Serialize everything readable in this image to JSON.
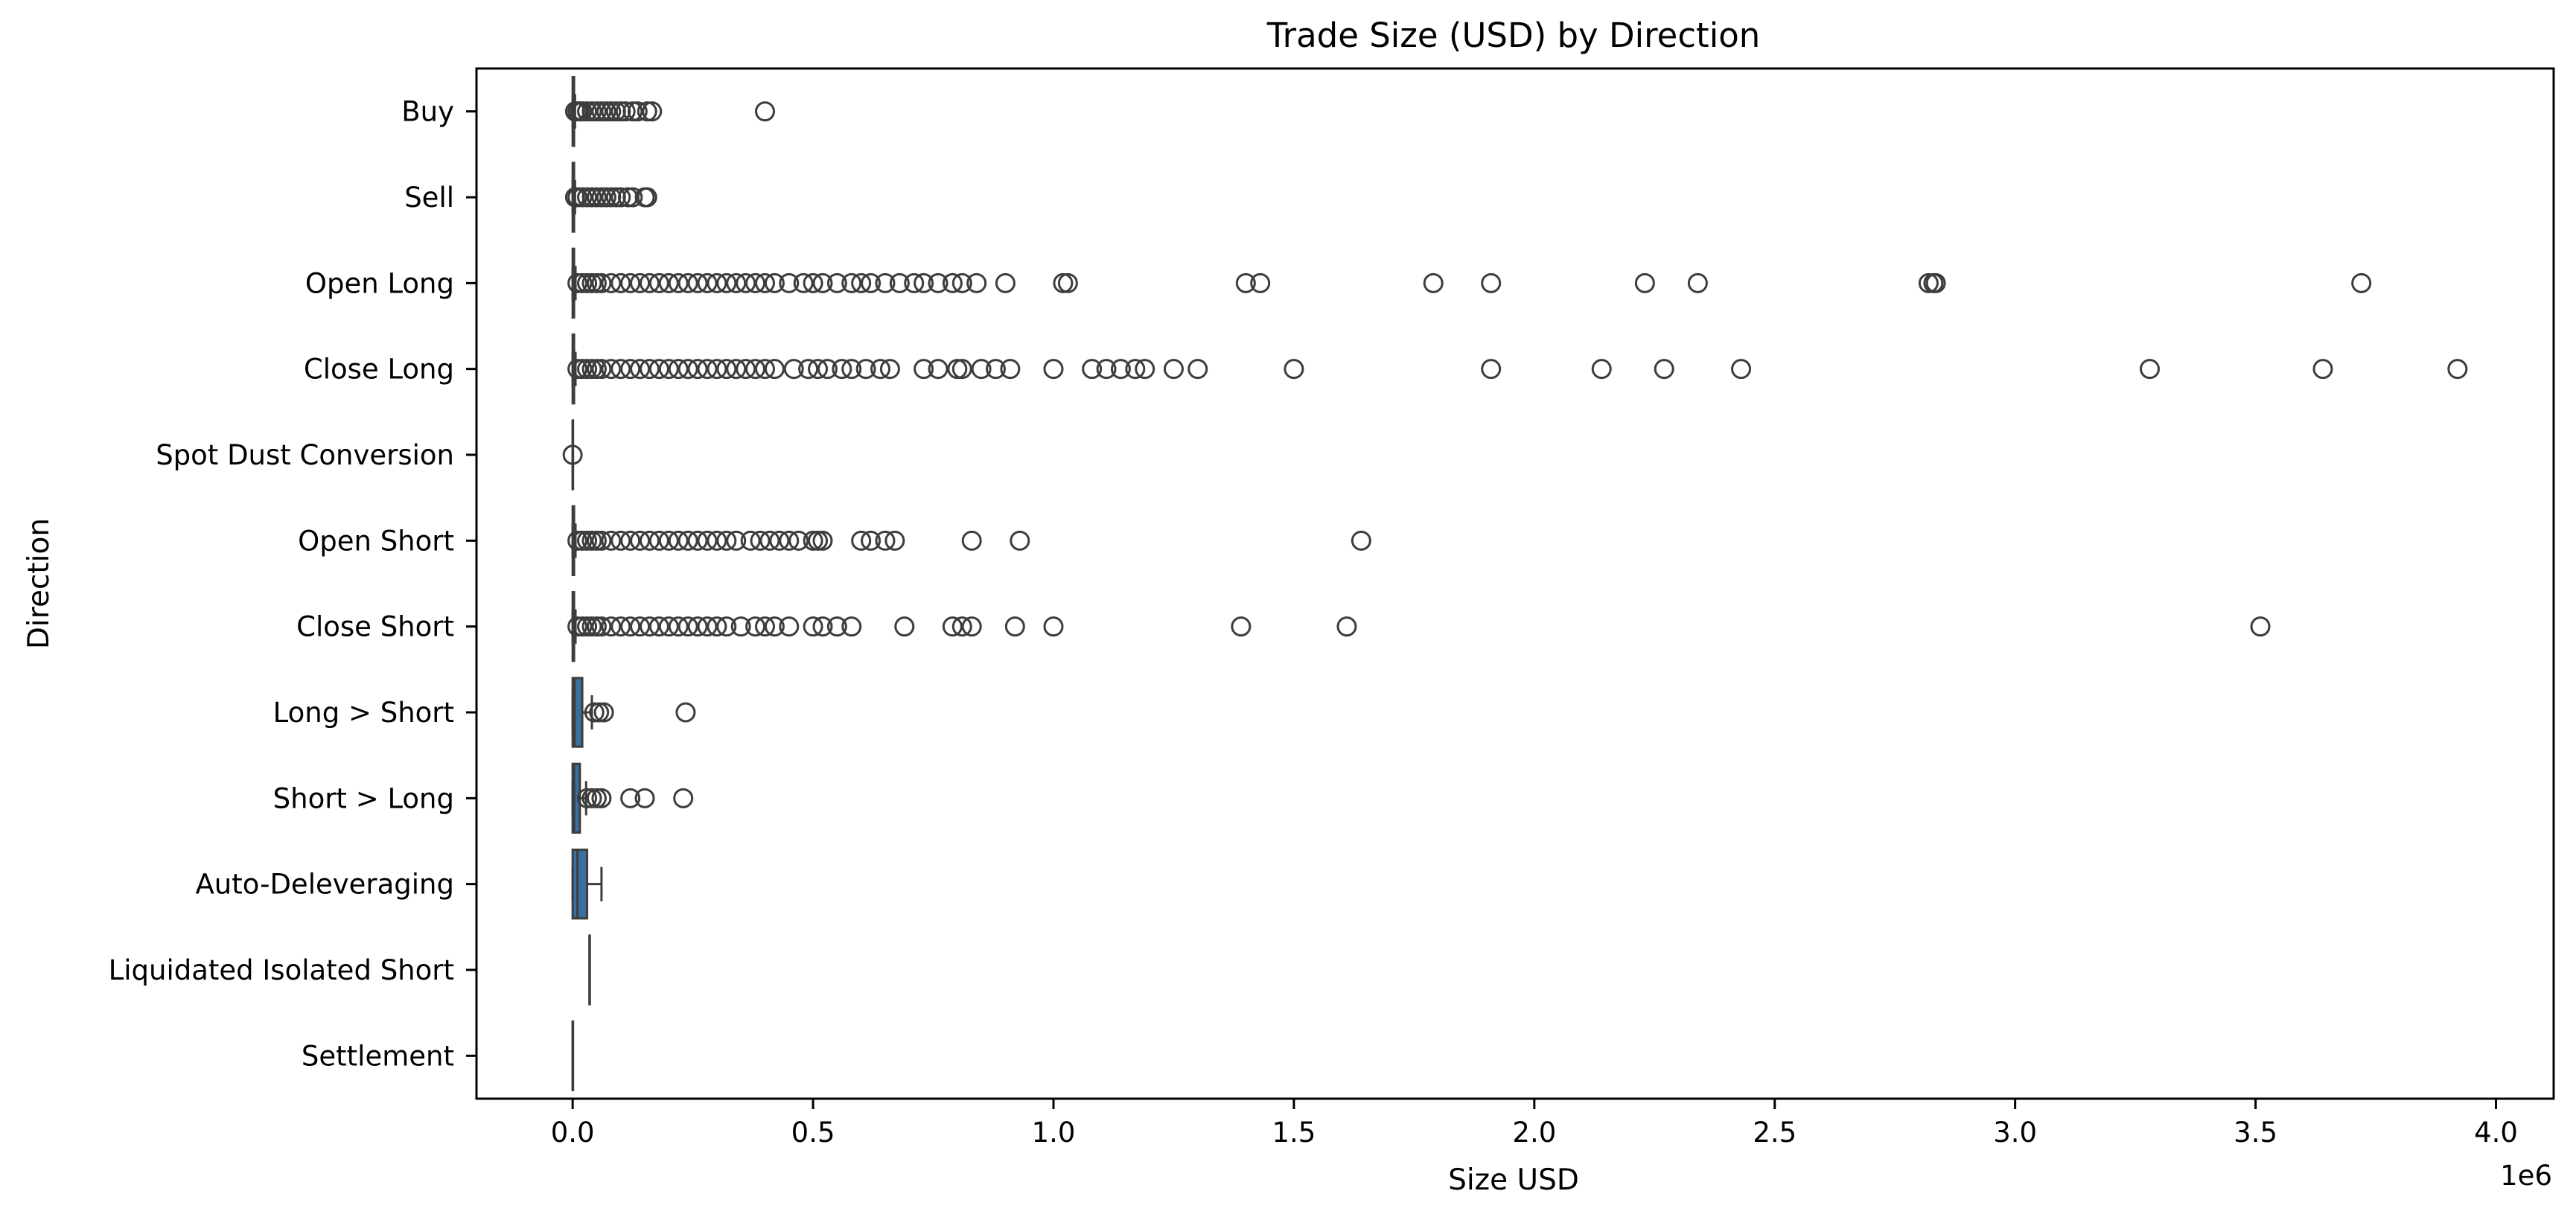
{
  "chart_data": {
    "type": "box",
    "orientation": "horizontal",
    "title": "Trade Size (USD) by Direction",
    "xlabel": "Size USD",
    "ylabel": "Direction",
    "x_scale_multiplier_label": "1e6",
    "xlim": [
      -0.2,
      4.12
    ],
    "x_ticks": [
      0.0,
      0.5,
      1.0,
      1.5,
      2.0,
      2.5,
      3.0,
      3.5,
      4.0
    ],
    "x_tick_labels": [
      "0.0",
      "0.5",
      "1.0",
      "1.5",
      "2.0",
      "2.5",
      "3.0",
      "3.5",
      "4.0"
    ],
    "grid": false,
    "legend": "none",
    "box_color": "#3a6f9f",
    "edge_color": "#3d3d3d",
    "categories": [
      "Buy",
      "Sell",
      "Open Long",
      "Close Long",
      "Spot Dust Conversion",
      "Open Short",
      "Close Short",
      "Long > Short",
      "Short > Long",
      "Auto-Deleveraging",
      "Liquidated Isolated Short",
      "Settlement"
    ],
    "boxes": [
      {
        "category": "Buy",
        "q1": 0.0,
        "median": 0.001,
        "q3": 0.003,
        "whisker_low": 0.0,
        "whisker_high": 0.005,
        "outliers": [
          0.005,
          0.01,
          0.015,
          0.02,
          0.03,
          0.04,
          0.05,
          0.06,
          0.07,
          0.08,
          0.09,
          0.1,
          0.11,
          0.125,
          0.135,
          0.155,
          0.165,
          0.4
        ]
      },
      {
        "category": "Sell",
        "q1": 0.0,
        "median": 0.001,
        "q3": 0.003,
        "whisker_low": 0.0,
        "whisker_high": 0.005,
        "outliers": [
          0.005,
          0.01,
          0.02,
          0.03,
          0.04,
          0.05,
          0.06,
          0.07,
          0.08,
          0.09,
          0.1,
          0.115,
          0.125,
          0.15,
          0.155
        ]
      },
      {
        "category": "Open Long",
        "q1": 0.0,
        "median": 0.001,
        "q3": 0.003,
        "whisker_low": 0.0,
        "whisker_high": 0.006,
        "outliers": [
          0.01,
          0.02,
          0.03,
          0.04,
          0.05,
          0.06,
          0.08,
          0.1,
          0.12,
          0.14,
          0.16,
          0.18,
          0.2,
          0.22,
          0.24,
          0.26,
          0.28,
          0.3,
          0.32,
          0.34,
          0.36,
          0.38,
          0.4,
          0.42,
          0.45,
          0.48,
          0.5,
          0.52,
          0.55,
          0.58,
          0.6,
          0.62,
          0.65,
          0.68,
          0.71,
          0.73,
          0.76,
          0.79,
          0.81,
          0.84,
          0.9,
          1.02,
          1.03,
          1.4,
          1.43,
          1.79,
          1.91,
          2.23,
          2.34,
          2.82,
          2.83,
          2.835,
          3.72
        ]
      },
      {
        "category": "Close Long",
        "q1": 0.0,
        "median": 0.001,
        "q3": 0.003,
        "whisker_low": 0.0,
        "whisker_high": 0.006,
        "outliers": [
          0.01,
          0.02,
          0.03,
          0.04,
          0.05,
          0.06,
          0.08,
          0.1,
          0.12,
          0.14,
          0.16,
          0.18,
          0.2,
          0.22,
          0.24,
          0.26,
          0.28,
          0.3,
          0.32,
          0.34,
          0.36,
          0.38,
          0.4,
          0.42,
          0.46,
          0.49,
          0.51,
          0.53,
          0.56,
          0.58,
          0.61,
          0.64,
          0.66,
          0.73,
          0.76,
          0.8,
          0.81,
          0.85,
          0.88,
          0.91,
          1.0,
          1.08,
          1.11,
          1.14,
          1.17,
          1.19,
          1.25,
          1.3,
          1.5,
          1.91,
          2.14,
          2.27,
          2.43,
          3.28,
          3.64,
          3.92
        ]
      },
      {
        "category": "Spot Dust Conversion",
        "q1": 0.0,
        "median": 0.0,
        "q3": 0.0,
        "whisker_low": 0.0,
        "whisker_high": 0.0,
        "outliers": [
          0.0
        ]
      },
      {
        "category": "Open Short",
        "q1": 0.0,
        "median": 0.001,
        "q3": 0.003,
        "whisker_low": 0.0,
        "whisker_high": 0.006,
        "outliers": [
          0.01,
          0.02,
          0.03,
          0.04,
          0.05,
          0.06,
          0.08,
          0.1,
          0.12,
          0.14,
          0.16,
          0.18,
          0.2,
          0.22,
          0.24,
          0.26,
          0.28,
          0.3,
          0.32,
          0.34,
          0.37,
          0.39,
          0.41,
          0.43,
          0.45,
          0.47,
          0.5,
          0.51,
          0.52,
          0.6,
          0.62,
          0.65,
          0.67,
          0.83,
          0.93,
          1.64
        ]
      },
      {
        "category": "Close Short",
        "q1": 0.0,
        "median": 0.001,
        "q3": 0.003,
        "whisker_low": 0.0,
        "whisker_high": 0.006,
        "outliers": [
          0.01,
          0.02,
          0.03,
          0.04,
          0.05,
          0.06,
          0.08,
          0.1,
          0.12,
          0.14,
          0.16,
          0.18,
          0.2,
          0.22,
          0.24,
          0.26,
          0.28,
          0.3,
          0.32,
          0.35,
          0.38,
          0.4,
          0.42,
          0.45,
          0.5,
          0.52,
          0.55,
          0.58,
          0.69,
          0.79,
          0.81,
          0.83,
          0.92,
          1.0,
          1.39,
          1.61,
          3.51
        ]
      },
      {
        "category": "Long > Short",
        "q1": 0.0,
        "median": 0.004,
        "q3": 0.02,
        "whisker_low": 0.0,
        "whisker_high": 0.04,
        "outliers": [
          0.045,
          0.055,
          0.065,
          0.235
        ]
      },
      {
        "category": "Short > Long",
        "q1": 0.0,
        "median": 0.003,
        "q3": 0.015,
        "whisker_low": 0.0,
        "whisker_high": 0.028,
        "outliers": [
          0.03,
          0.04,
          0.05,
          0.06,
          0.12,
          0.15,
          0.23
        ]
      },
      {
        "category": "Auto-Deleveraging",
        "q1": 0.0,
        "median": 0.01,
        "q3": 0.03,
        "whisker_low": 0.0,
        "whisker_high": 0.06,
        "outliers": []
      },
      {
        "category": "Liquidated Isolated Short",
        "q1": 0.035,
        "median": 0.035,
        "q3": 0.035,
        "whisker_low": 0.035,
        "whisker_high": 0.035,
        "outliers": []
      },
      {
        "category": "Settlement",
        "q1": 0.0,
        "median": 0.0,
        "q3": 0.0,
        "whisker_low": 0.0,
        "whisker_high": 0.0,
        "outliers": []
      }
    ]
  }
}
